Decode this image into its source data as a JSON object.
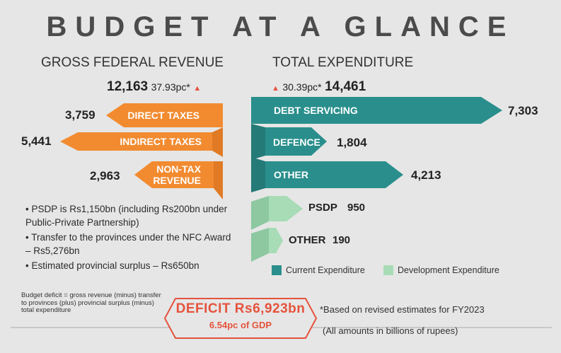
{
  "title": "BUDGET AT A GLANCE",
  "revenue": {
    "heading": "GROSS FEDERAL REVENUE",
    "total": "12,163",
    "growth": "37.93pc*",
    "items": [
      {
        "label": "DIRECT TAXES",
        "value": "3,759"
      },
      {
        "label": "INDIRECT TAXES",
        "value": "5,441"
      },
      {
        "label_line1": "NON-TAX",
        "label_line2": "REVENUE",
        "value": "2,963"
      }
    ]
  },
  "expenditure": {
    "heading": "TOTAL EXPENDITURE",
    "total": "14,461",
    "growth": "30.39pc*",
    "items": [
      {
        "label": "DEBT SERVICING",
        "value": "7,303"
      },
      {
        "label": "DEFENCE",
        "value": "1,804"
      },
      {
        "label": "OTHER",
        "value": "4,213"
      },
      {
        "label": "PSDP",
        "value": "950"
      },
      {
        "label": "OTHER",
        "value": "190"
      }
    ]
  },
  "notes": [
    "PSDP is Rs1,150bn (including Rs200bn under Public-Private Partnership)",
    "Transfer to the provinces under the NFC Award – Rs5,276bn",
    "Estimated provincial surplus – Rs650bn"
  ],
  "legend": {
    "current": "Current Expenditure",
    "development": "Development Expenditure"
  },
  "budget_note": "Budget deficit = gross revenue (minus) transfer to provinces (plus) provincial surplus (minus) total expenditure",
  "deficit": {
    "title": "DEFICIT Rs6,923bn",
    "subtitle": "6.54pc of GDP"
  },
  "footnote1": "*Based on revised estimates for FY2023",
  "footnote2": "(All amounts in billions of rupees)",
  "colors": {
    "orange": "#f28b30",
    "teal": "#2a8f8c",
    "green": "#a7dcb6",
    "red": "#e5533c"
  },
  "chart_data": {
    "type": "bar",
    "title": "BUDGET AT A GLANCE",
    "series": [
      {
        "name": "GROSS FEDERAL REVENUE",
        "total": 12163,
        "categories": [
          "DIRECT TAXES",
          "INDIRECT TAXES",
          "NON-TAX REVENUE"
        ],
        "values": [
          3759,
          5441,
          2963
        ]
      },
      {
        "name": "TOTAL EXPENDITURE",
        "total": 14461,
        "categories": [
          "DEBT SERVICING",
          "DEFENCE",
          "OTHER",
          "PSDP",
          "OTHER"
        ],
        "values": [
          7303,
          1804,
          4213,
          950,
          190
        ],
        "types": [
          "Current Expenditure",
          "Current Expenditure",
          "Current Expenditure",
          "Development Expenditure",
          "Development Expenditure"
        ]
      }
    ],
    "deficit": 6923,
    "deficit_pc_gdp": 6.54,
    "growth_pc": {
      "revenue": 37.93,
      "expenditure": 30.39
    },
    "units": "billions of rupees"
  }
}
